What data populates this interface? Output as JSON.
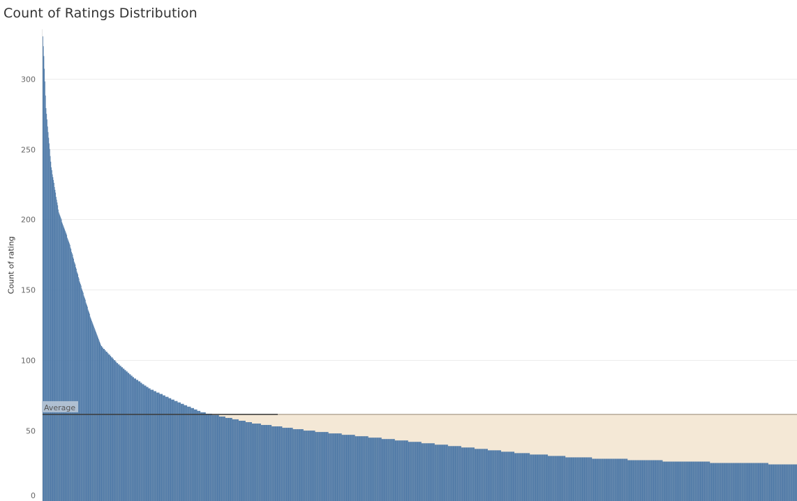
{
  "chart_data": {
    "type": "bar",
    "title": "Count of Ratings Distribution",
    "ylabel": "Count of rating",
    "xlabel": "",
    "ylim": [
      0,
      336
    ],
    "yticks": [
      0,
      50,
      100,
      150,
      200,
      250,
      300
    ],
    "grid": true,
    "average": {
      "label": "Average",
      "value": 61.5
    },
    "colors": {
      "bar": "#4e79a7",
      "band": "#f4e8d6",
      "avg_line": "#3b3b3b",
      "band_border": "#b5a898"
    },
    "rank_breakpoints": [
      0,
      2,
      6,
      16,
      30,
      50,
      70,
      90,
      110,
      140,
      170,
      200,
      250,
      300,
      400,
      500,
      600,
      700,
      800,
      900,
      1000,
      1200,
      1420
    ],
    "values": [
      330,
      316,
      279,
      237,
      205,
      183,
      155,
      130,
      110,
      98,
      88,
      80,
      71,
      63,
      55,
      50,
      46,
      42,
      38,
      34,
      31,
      28,
      26
    ]
  }
}
